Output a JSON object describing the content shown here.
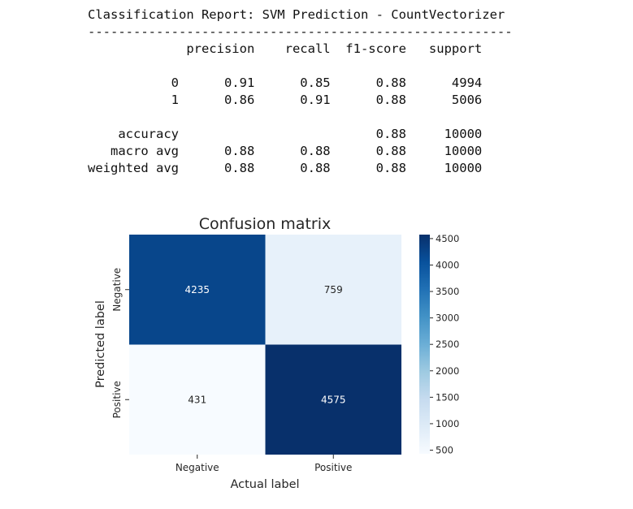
{
  "report": {
    "title": "Classification Report: SVM Prediction - CountVectorizer",
    "separator": "--------------------------------------------------------",
    "columns": [
      "precision",
      "recall",
      "f1-score",
      "support"
    ],
    "rows": [
      {
        "label": "0",
        "precision": "0.91",
        "recall": "0.85",
        "f1": "0.88",
        "support": "4994"
      },
      {
        "label": "1",
        "precision": "0.86",
        "recall": "0.91",
        "f1": "0.88",
        "support": "5006"
      }
    ],
    "summary": [
      {
        "label": "accuracy",
        "precision": "",
        "recall": "",
        "f1": "0.88",
        "support": "10000"
      },
      {
        "label": "macro avg",
        "precision": "0.88",
        "recall": "0.88",
        "f1": "0.88",
        "support": "10000"
      },
      {
        "label": "weighted avg",
        "precision": "0.88",
        "recall": "0.88",
        "f1": "0.88",
        "support": "10000"
      }
    ]
  },
  "chart_data": {
    "type": "heatmap",
    "title": "Confusion matrix",
    "xlabel": "Actual label",
    "ylabel": "Predicted label",
    "x_categories": [
      "Negative",
      "Positive"
    ],
    "y_categories": [
      "Negative",
      "Positive"
    ],
    "values": [
      [
        4235,
        759
      ],
      [
        431,
        4575
      ]
    ],
    "colormap": "Blues",
    "colorbar": {
      "range": [
        431,
        4575
      ],
      "ticks": [
        500,
        1000,
        1500,
        2000,
        2500,
        3000,
        3500,
        4000,
        4500
      ]
    },
    "colors": {
      "low": "#f7fbff",
      "high": "#08306b",
      "light_text": "#ffffff",
      "dark_text": "#262626"
    }
  }
}
